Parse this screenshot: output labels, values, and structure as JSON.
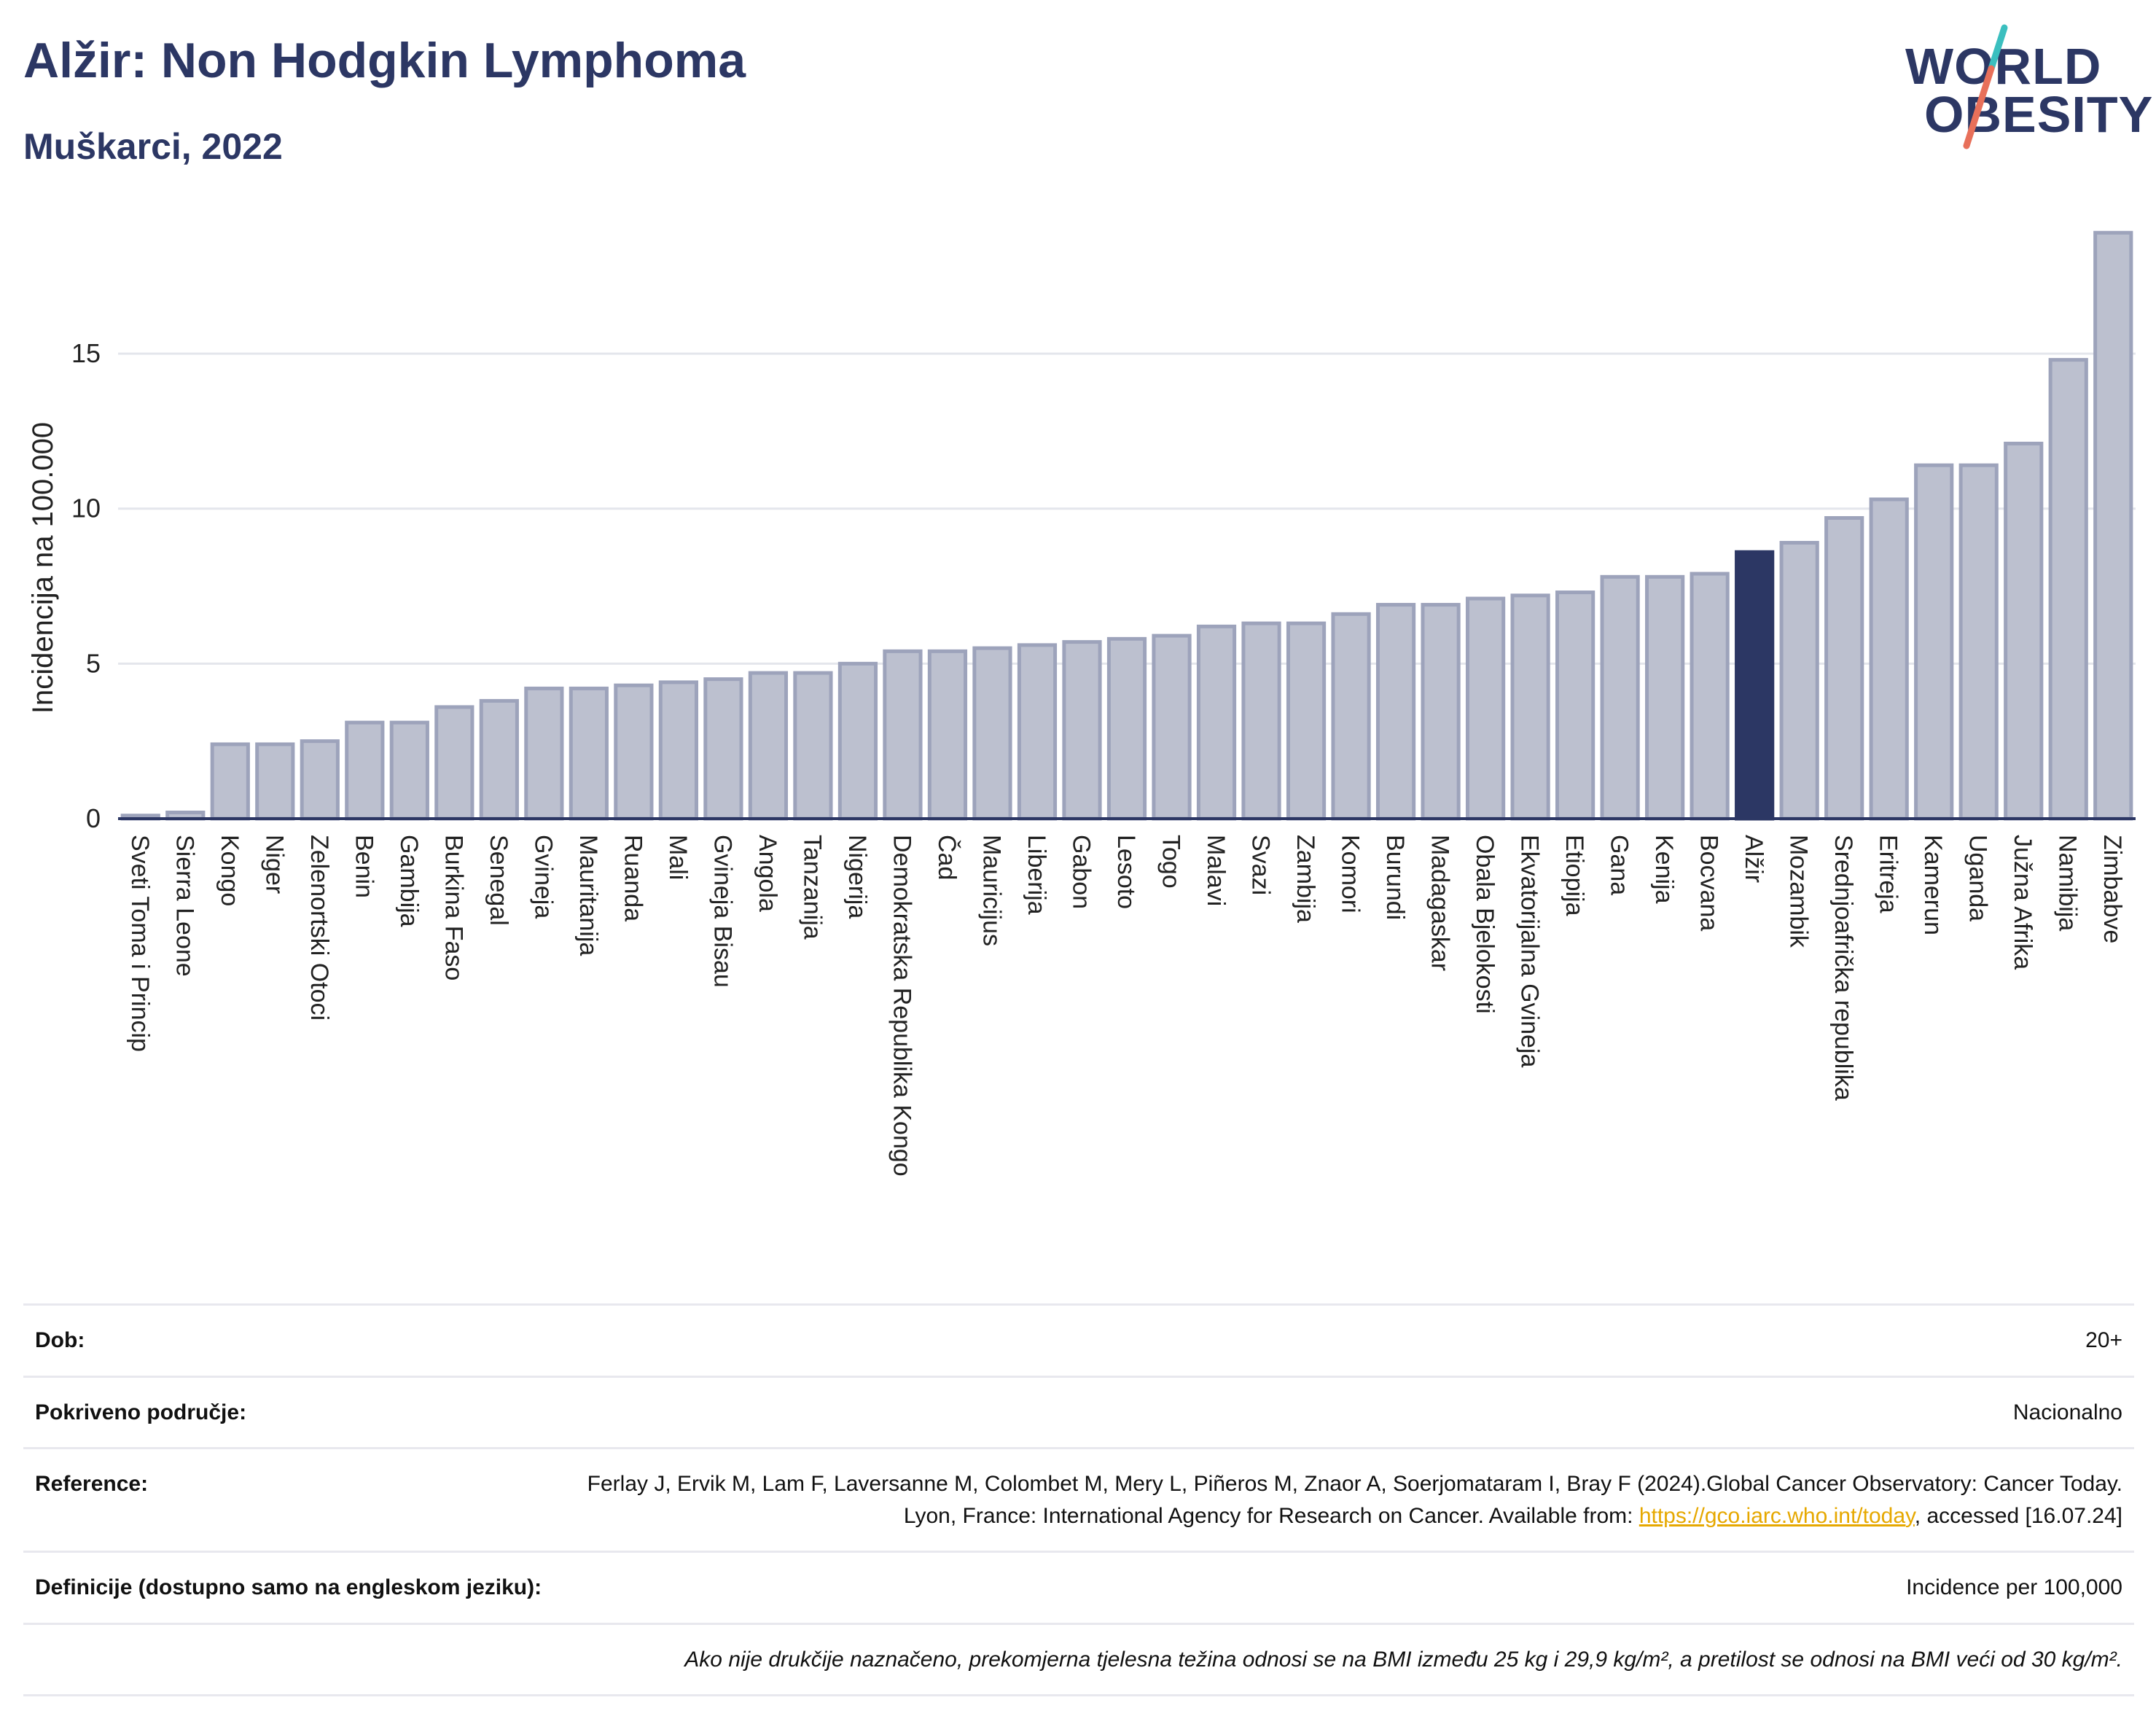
{
  "header": {
    "title": "Alžir: Non Hodgkin Lymphoma",
    "subtitle": "Muškarci, 2022"
  },
  "logo": {
    "line1": "WORLD",
    "line2": "OBESITY"
  },
  "colors": {
    "highlight": "#2c3764",
    "bar_fill": "#bcc0cf",
    "bar_stroke": "#9da3bb",
    "grid": "#e4e6ec",
    "logo_slash_top": "#3bbfbf",
    "logo_slash_bottom": "#e8705a"
  },
  "chart_data": {
    "type": "bar",
    "title": "Alžir: Non Hodgkin Lymphoma",
    "subtitle": "Muškarci, 2022",
    "ylabel": "Incidencija na 100.000",
    "xlabel": "",
    "ylim": [
      0,
      19
    ],
    "yticks": [
      0,
      5,
      10,
      15
    ],
    "grid": true,
    "highlight": "Alžir",
    "categories": [
      "Sveti Toma i Princip",
      "Sierra Leone",
      "Kongo",
      "Niger",
      "Zelenortski Otoci",
      "Benin",
      "Gambija",
      "Burkina Faso",
      "Senegal",
      "Gvineja",
      "Mauritanija",
      "Ruanda",
      "Mali",
      "Gvineja Bisau",
      "Angola",
      "Tanzanija",
      "Nigerija",
      "Demokratska Republika Kongo",
      "Čad",
      "Mauricijus",
      "Liberija",
      "Gabon",
      "Lesoto",
      "Togo",
      "Malavi",
      "Svazi",
      "Zambija",
      "Komori",
      "Burundi",
      "Madagaskar",
      "Obala Bjelokosti",
      "Ekvatorijalna Gvineja",
      "Etiopija",
      "Gana",
      "Kenija",
      "Bocvana",
      "Alžir",
      "Mozambik",
      "Srednjoafrička republika",
      "Eritreja",
      "Kamerun",
      "Uganda",
      "Južna Afrika",
      "Namibija",
      "Zimbabve"
    ],
    "values": [
      0.1,
      0.2,
      2.4,
      2.4,
      2.5,
      3.1,
      3.1,
      3.6,
      3.8,
      4.2,
      4.2,
      4.3,
      4.4,
      4.5,
      4.7,
      4.7,
      5.0,
      5.4,
      5.4,
      5.5,
      5.6,
      5.7,
      5.8,
      5.9,
      6.2,
      6.3,
      6.3,
      6.6,
      6.9,
      6.9,
      7.1,
      7.2,
      7.3,
      7.8,
      7.8,
      7.9,
      8.6,
      8.9,
      9.7,
      10.3,
      11.4,
      11.4,
      12.1,
      14.8,
      18.9
    ]
  },
  "info": {
    "age_label": "Dob:",
    "age_value": "20+",
    "coverage_label": "Pokriveno područje:",
    "coverage_value": "Nacionalno",
    "reference_label": "Reference:",
    "reference_text": "Ferlay J, Ervik M, Lam F, Laversanne M, Colombet M, Mery L, Piñeros M, Znaor A, Soerjomataram I, Bray F (2024).Global Cancer Observatory: Cancer Today. Lyon, France: International Agency for Research on Cancer. Available from:",
    "reference_link": "https://gco.iarc.who.int/today",
    "reference_after": ", accessed [16.07.24]",
    "definitions_label": "Definicije (dostupno samo na engleskom jeziku):",
    "definitions_value": "Incidence per 100,000",
    "footnote": "Ako nije drukčije naznačeno, prekomjerna tjelesna težina odnosi se na BMI između 25 kg i 29,9 kg/m², a pretilost se odnosi na BMI veći od 30 kg/m²."
  }
}
